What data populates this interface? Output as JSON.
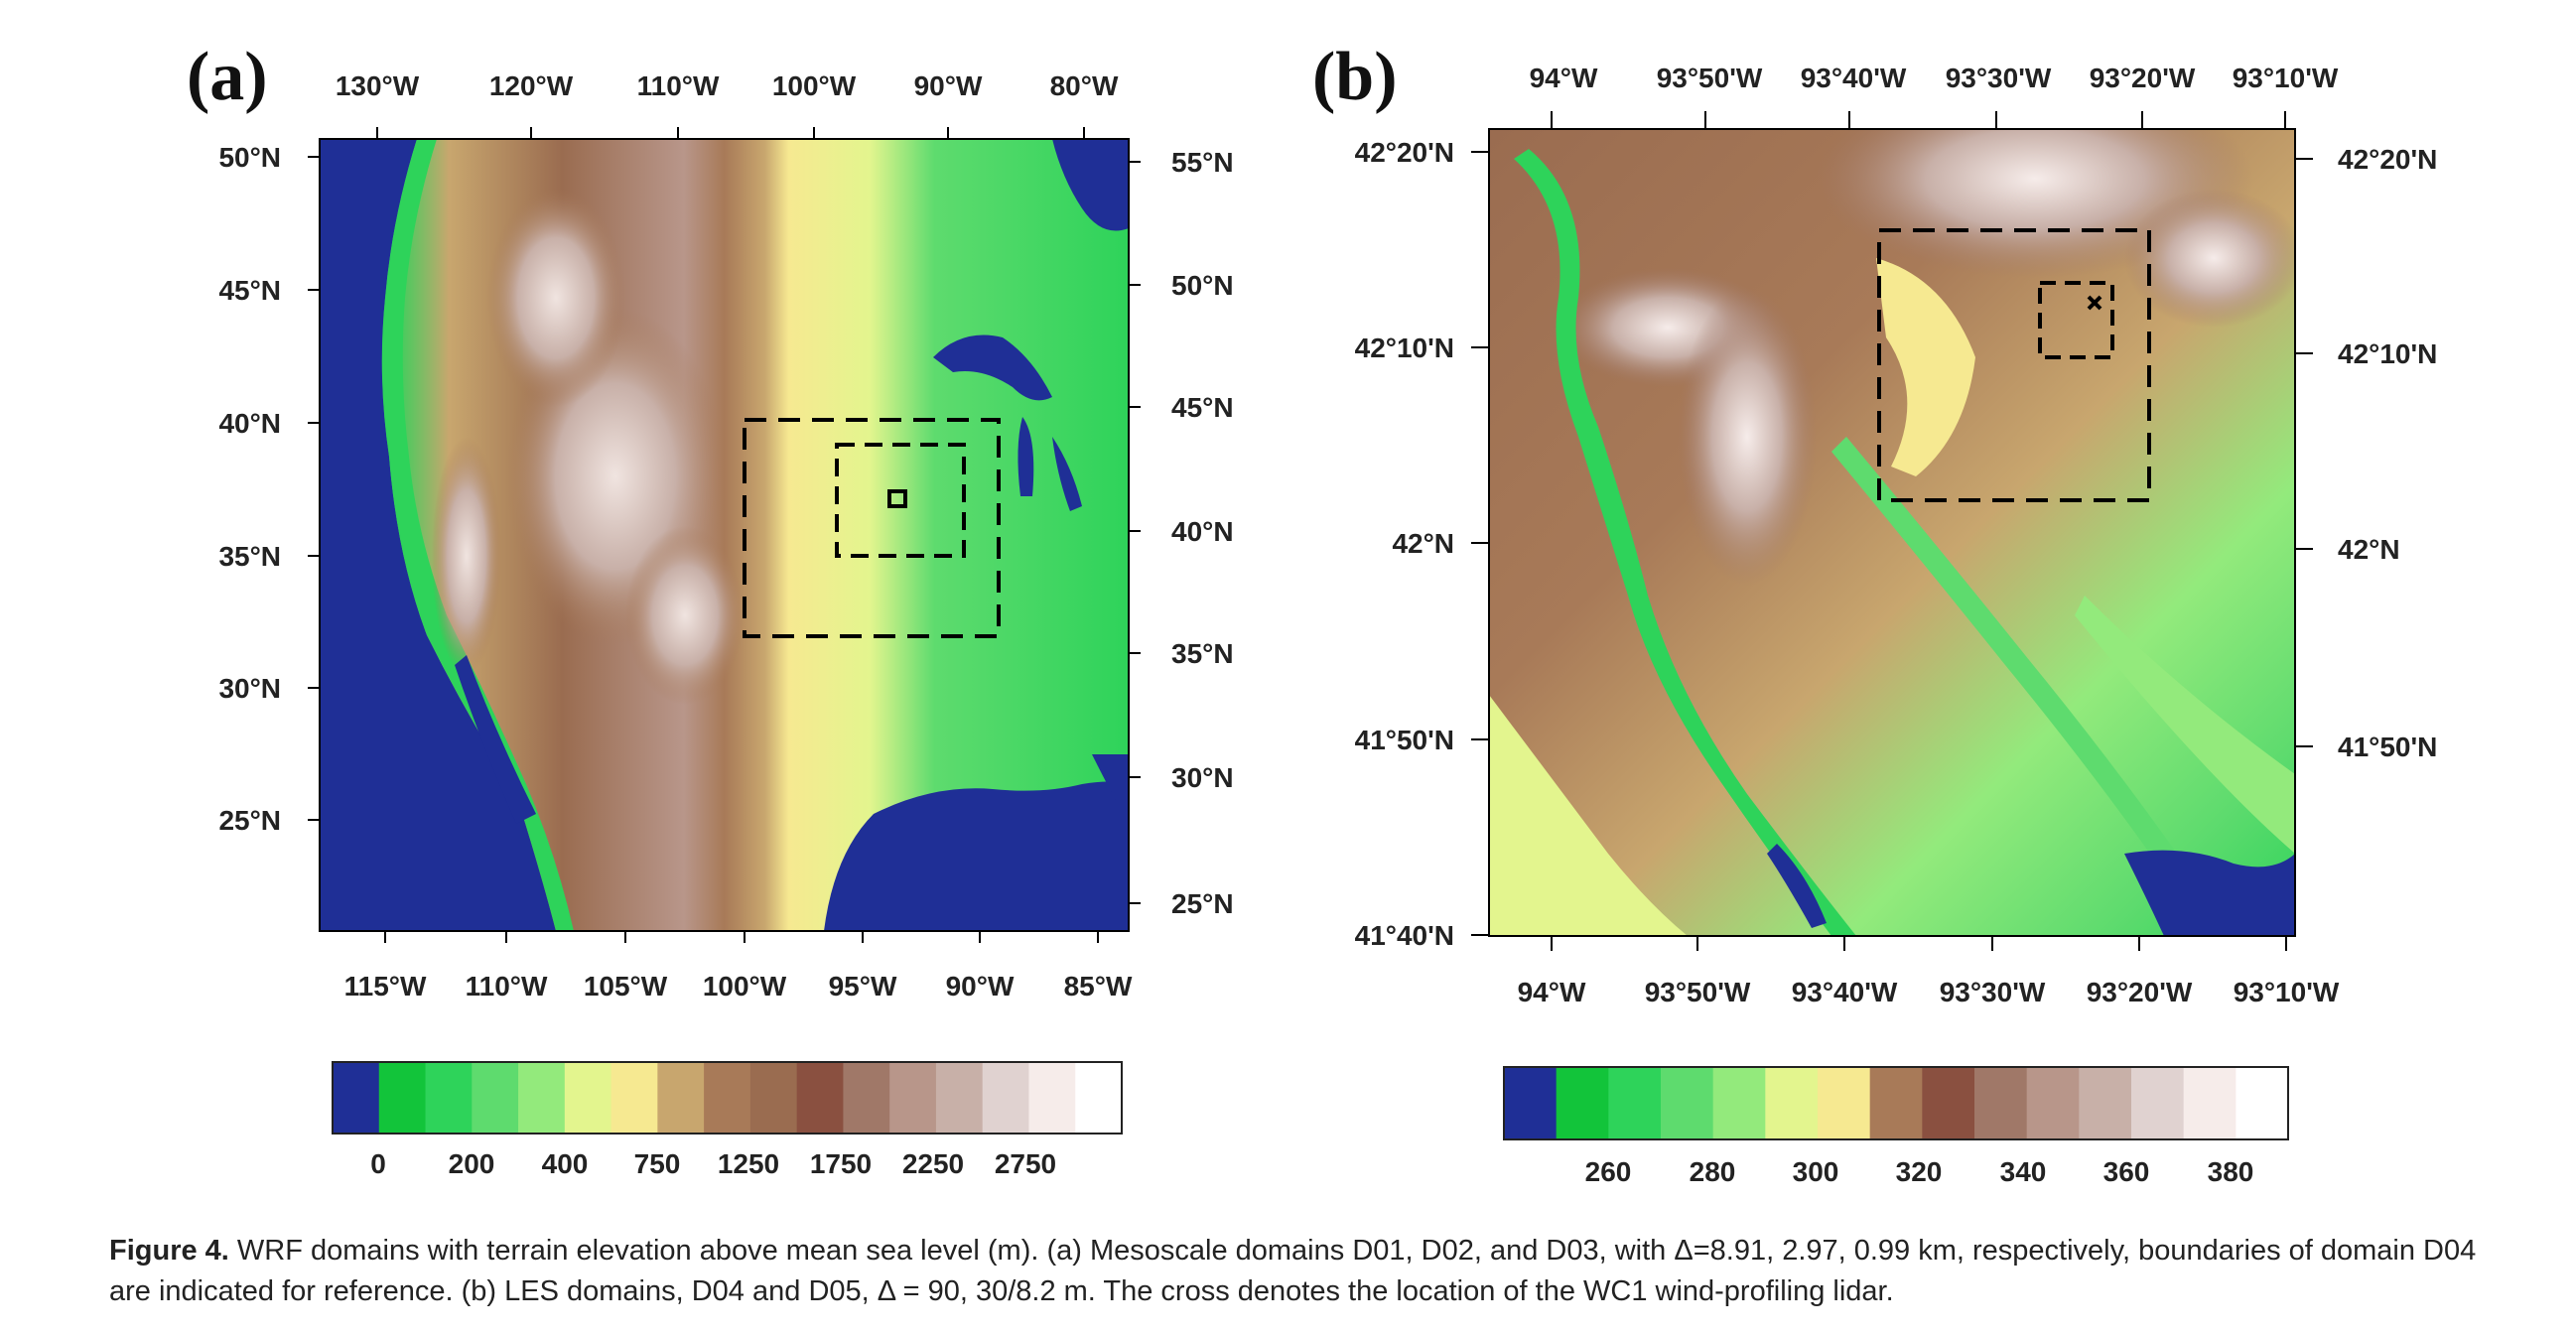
{
  "panel_a": {
    "tag": "(a)",
    "top_ticks": [
      "130°W",
      "120°W",
      "110°W",
      "100°W",
      "90°W",
      "80°W"
    ],
    "bottom_ticks": [
      "115°W",
      "110°W",
      "105°W",
      "100°W",
      "95°W",
      "90°W",
      "85°W"
    ],
    "left_ticks": [
      "50°N",
      "45°N",
      "40°N",
      "35°N",
      "30°N",
      "25°N"
    ],
    "right_ticks": [
      "55°N",
      "50°N",
      "45°N",
      "40°N",
      "35°N",
      "30°N",
      "25°N"
    ],
    "colorbar_labels": [
      "0",
      "200",
      "400",
      "750",
      "1250",
      "1750",
      "2250",
      "2750"
    ],
    "colorbar_colors": [
      "#1f2f96",
      "#12c43a",
      "#2ed35a",
      "#5edb6e",
      "#93ea7c",
      "#e3f58e",
      "#f6e991",
      "#c8a66e",
      "#a87a58",
      "#9a6c50",
      "#8a5040",
      "#a07868",
      "#b8968a",
      "#c8b0a8",
      "#e0d2d0",
      "#f6ecea",
      "#ffffff"
    ],
    "domains": [
      "D01",
      "D02",
      "D03",
      "D04"
    ]
  },
  "panel_b": {
    "tag": "(b)",
    "top_ticks": [
      "94°W",
      "93°50'W",
      "93°40'W",
      "93°30'W",
      "93°20'W",
      "93°10'W"
    ],
    "bottom_ticks": [
      "94°W",
      "93°50'W",
      "93°40'W",
      "93°30'W",
      "93°20'W",
      "93°10'W"
    ],
    "left_ticks": [
      "42°20'N",
      "42°10'N",
      "42°N",
      "41°50'N",
      "41°40'N"
    ],
    "right_ticks": [
      "42°20'N",
      "42°10'N",
      "42°N",
      "41°50'N"
    ],
    "colorbar_labels": [
      "260",
      "280",
      "300",
      "320",
      "340",
      "360",
      "380"
    ],
    "colorbar_colors": [
      "#1f2f96",
      "#12c43a",
      "#2ed35a",
      "#5edb6e",
      "#93ea7c",
      "#e3f58e",
      "#f6e991",
      "#a87a58",
      "#8a5040",
      "#a07868",
      "#b8968a",
      "#c8b0a8",
      "#e0d2d0",
      "#f6ecea",
      "#ffffff"
    ],
    "domains": [
      "D04",
      "D05"
    ],
    "marker": "WC1 wind-profiling lidar"
  },
  "caption": {
    "head": "Figure 4.",
    "body": " WRF domains with terrain elevation above mean sea level (m). (a) Mesoscale domains D01, D02, and D03, with Δ=8.91, 2.97, 0.99 km, respectively, boundaries of domain D04 are indicated for reference. (b) LES domains, D04 and D05, Δ = 90, 30/8.2 m. The cross denotes the location of the WC1 wind-profiling lidar."
  }
}
